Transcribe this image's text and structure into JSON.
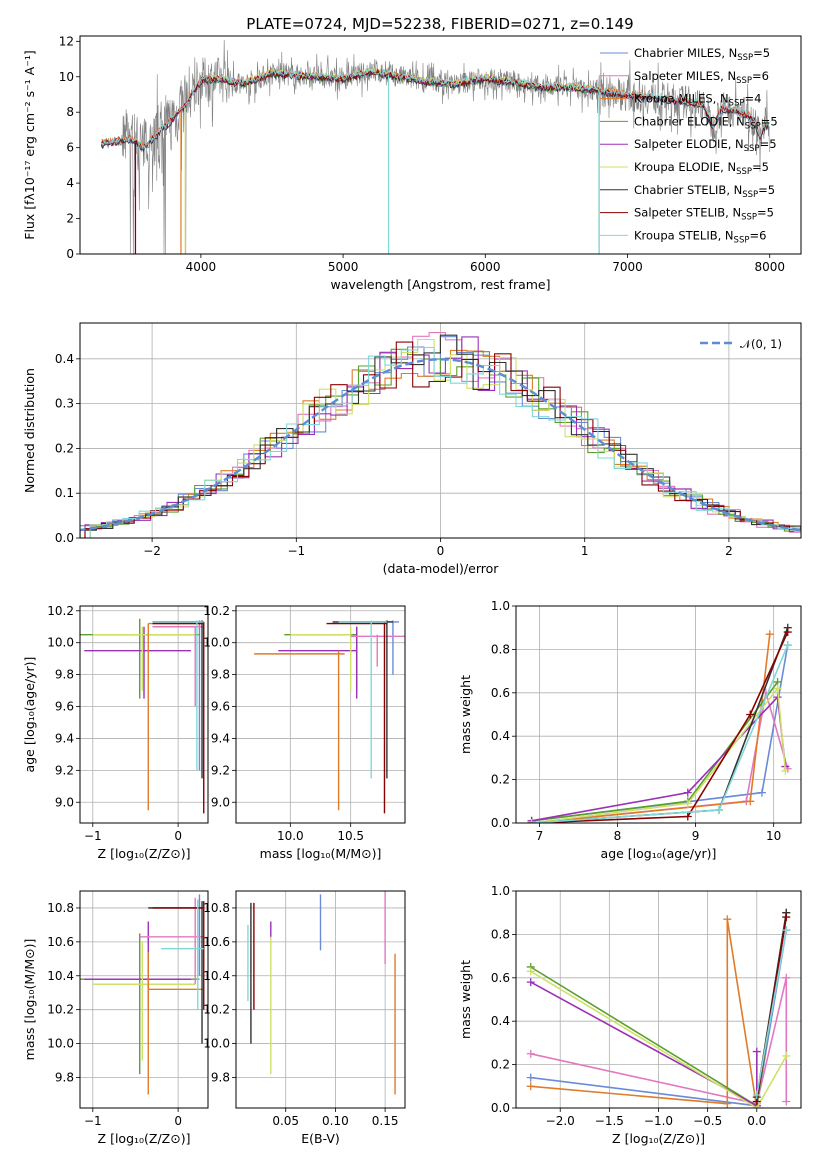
{
  "figure": {
    "title": "PLATE=0724, MJD=52238, FIBERID=0271, z=0.149"
  },
  "colors": {
    "Chabrier MILES": "#6a8bd8",
    "Salpeter MILES": "#e377c2",
    "Kroupa MILES": "#e07b2a",
    "Chabrier ELODIE": "#5aa02c",
    "Salpeter ELODIE": "#9b30b8",
    "Kroupa ELODIE": "#cfe06a",
    "Chabrier STELIB": "#333333",
    "Salpeter STELIB": "#8b0000",
    "Kroupa STELIB": "#80d8d8",
    "data": "#808080",
    "gaussian": "#5b8dd6"
  },
  "chart_data": [
    {
      "id": "spectrum",
      "type": "line",
      "xlabel": "wavelength [Angstrom, rest frame]",
      "ylabel": "Flux [fλ10⁻¹⁷ erg cm⁻² s⁻¹ A⁻¹]",
      "xlim": [
        3150,
        8220
      ],
      "ylim": [
        0,
        12.3
      ],
      "xticks": [
        "4000",
        "5000",
        "6000",
        "7000",
        "8000"
      ],
      "yticks": [
        "0",
        "2",
        "4",
        "6",
        "8",
        "10",
        "12"
      ],
      "legend_placement": "right",
      "legend": [
        {
          "label": "Chabrier MILES, N",
          "sub": "SSP",
          "tail": "=5"
        },
        {
          "label": "Salpeter MILES, N",
          "sub": "SSP",
          "tail": "=6"
        },
        {
          "label": "Kroupa MILES, N",
          "sub": "SSP",
          "tail": "=4"
        },
        {
          "label": "Chabrier ELODIE, N",
          "sub": "SSP",
          "tail": "=5"
        },
        {
          "label": "Salpeter ELODIE, N",
          "sub": "SSP",
          "tail": "=5"
        },
        {
          "label": "Kroupa ELODIE, N",
          "sub": "SSP",
          "tail": "=5"
        },
        {
          "label": "Chabrier STELIB, N",
          "sub": "SSP",
          "tail": "=5"
        },
        {
          "label": "Salpeter STELIB, N",
          "sub": "SSP",
          "tail": "=5"
        },
        {
          "label": "Kroupa STELIB, N",
          "sub": "SSP",
          "tail": "=6"
        }
      ],
      "continuum": {
        "x": [
          3300,
          3500,
          3600,
          3800,
          3900,
          4000,
          4100,
          4300,
          4500,
          4800,
          5000,
          5200,
          5400,
          5600,
          5800,
          6000,
          6200,
          6400,
          6600,
          6800,
          7000,
          7200,
          7400,
          7600,
          7800,
          8000
        ],
        "y": [
          6.2,
          6.5,
          6.0,
          7.6,
          8.5,
          9.8,
          9.9,
          9.6,
          10.2,
          10.0,
          9.9,
          10.3,
          10.0,
          9.7,
          9.6,
          9.9,
          9.7,
          9.4,
          9.4,
          9.2,
          9.0,
          8.8,
          8.6,
          8.3,
          8.0,
          7.2
        ]
      }
    },
    {
      "id": "residual-histogram",
      "type": "bar",
      "xlabel": "(data-model)/error",
      "ylabel": "Normed distribution",
      "xlim": [
        -2.5,
        2.5
      ],
      "ylim": [
        0,
        0.48
      ],
      "xticks": [
        "−2",
        "−1",
        "0",
        "1",
        "2"
      ],
      "yticks": [
        "0.0",
        "0.1",
        "0.2",
        "0.3",
        "0.4"
      ],
      "legend": "𝒩(0, 1)",
      "legend_placement": "top-right",
      "gaussian": {
        "mu": 0,
        "sigma": 1
      }
    },
    {
      "id": "age-vs-z",
      "type": "scatter",
      "xlabel": "Z [log₁₀(Z/Z⊙)]",
      "ylabel": "age  [log₁₀(age/yr)]",
      "xlim": [
        -1.15,
        0.35
      ],
      "ylim": [
        8.87,
        10.23
      ],
      "xticks": [
        "−1",
        "0"
      ],
      "yticks": [
        "9.0",
        "9.2",
        "9.4",
        "9.6",
        "9.8",
        "10.0",
        "10.2"
      ]
    },
    {
      "id": "age-vs-mass",
      "type": "scatter",
      "xlabel": "mass [log₁₀(M/M⊙)]",
      "xlim": [
        9.55,
        10.95
      ],
      "ylim": [
        8.87,
        10.23
      ],
      "xticks": [
        "10.0",
        "10.5"
      ],
      "yticks": [
        "9.0",
        "9.2",
        "9.4",
        "9.6",
        "9.8",
        "10.0",
        "10.2"
      ]
    },
    {
      "id": "weight-vs-age",
      "type": "line",
      "xlabel": "age  [log₁₀(age/yr)]",
      "ylabel": "mass weight",
      "xlim": [
        6.7,
        10.35
      ],
      "ylim": [
        0,
        1.0
      ],
      "xticks": [
        "7",
        "8",
        "9",
        "10"
      ],
      "yticks": [
        "0.0",
        "0.2",
        "0.4",
        "0.6",
        "0.8",
        "1.0"
      ],
      "series": [
        {
          "model": "Chabrier MILES",
          "x": [
            6.9,
            9.85,
            10.18
          ],
          "y": [
            0.01,
            0.14,
            0.82
          ]
        },
        {
          "model": "Salpeter MILES",
          "x": [
            6.9,
            9.65,
            9.9,
            10.18
          ],
          "y": [
            0.0,
            0.1,
            0.6,
            0.25
          ]
        },
        {
          "model": "Kroupa MILES",
          "x": [
            6.9,
            9.7,
            9.95
          ],
          "y": [
            0.0,
            0.1,
            0.87
          ]
        },
        {
          "model": "Chabrier ELODIE",
          "x": [
            6.9,
            8.9,
            10.05
          ],
          "y": [
            0.01,
            0.1,
            0.65
          ]
        },
        {
          "model": "Salpeter ELODIE",
          "x": [
            6.9,
            8.9,
            10.05,
            10.15
          ],
          "y": [
            0.01,
            0.14,
            0.58,
            0.26
          ]
        },
        {
          "model": "Kroupa ELODIE",
          "x": [
            6.9,
            8.9,
            10.05,
            10.15
          ],
          "y": [
            0.0,
            0.09,
            0.62,
            0.24
          ]
        },
        {
          "model": "Chabrier STELIB",
          "x": [
            6.9,
            9.3,
            10.18
          ],
          "y": [
            0.0,
            0.06,
            0.9
          ]
        },
        {
          "model": "Salpeter STELIB",
          "x": [
            6.9,
            8.9,
            9.7,
            10.18
          ],
          "y": [
            0.0,
            0.03,
            0.5,
            0.88
          ]
        },
        {
          "model": "Kroupa STELIB",
          "x": [
            6.9,
            9.3,
            10.18
          ],
          "y": [
            0.0,
            0.06,
            0.82
          ]
        }
      ]
    },
    {
      "id": "mass-vs-z",
      "type": "scatter",
      "xlabel": "Z [log₁₀(Z/Z⊙)]",
      "ylabel": "mass [log₁₀(M/M⊙)]",
      "xlim": [
        -1.15,
        0.35
      ],
      "ylim": [
        9.62,
        10.9
      ],
      "xticks": [
        "−1",
        "0"
      ],
      "yticks": [
        "9.8",
        "10.0",
        "10.2",
        "10.4",
        "10.6",
        "10.8"
      ]
    },
    {
      "id": "mass-vs-ebv",
      "type": "scatter",
      "xlabel": "E(B-V)",
      "xlim": [
        0.0,
        0.17
      ],
      "ylim": [
        9.62,
        10.9
      ],
      "xticks": [
        "0.05",
        "0.10",
        "0.15"
      ],
      "yticks": [
        "9.8",
        "10.0",
        "10.2",
        "10.4",
        "10.6",
        "10.8"
      ]
    },
    {
      "id": "weight-vs-z",
      "type": "line",
      "xlabel": "Z [log₁₀(Z/Z⊙)]",
      "ylabel": "mass weight",
      "xlim": [
        -2.45,
        0.45
      ],
      "ylim": [
        0,
        1.0
      ],
      "xticks": [
        "−2.0",
        "−1.5",
        "−1.0",
        "−0.5",
        "0.0"
      ],
      "yticks": [
        "0.0",
        "0.2",
        "0.4",
        "0.6",
        "0.8",
        "1.0"
      ],
      "series": [
        {
          "model": "Chabrier MILES",
          "x": [
            -2.3,
            0.0,
            0.3
          ],
          "y": [
            0.14,
            0.01,
            0.82
          ]
        },
        {
          "model": "Salpeter MILES",
          "x": [
            -2.3,
            0.0,
            0.3,
            0.3
          ],
          "y": [
            0.25,
            0.02,
            0.6,
            0.03
          ]
        },
        {
          "model": "Kroupa MILES",
          "x": [
            -2.3,
            -0.3,
            -0.3,
            0.0
          ],
          "y": [
            0.1,
            0.02,
            0.87,
            0.0
          ]
        },
        {
          "model": "Chabrier ELODIE",
          "x": [
            -2.3,
            0.0,
            0.3
          ],
          "y": [
            0.65,
            0.01,
            0.9
          ]
        },
        {
          "model": "Salpeter ELODIE",
          "x": [
            -2.3,
            0.0,
            0.0
          ],
          "y": [
            0.58,
            0.01,
            0.26
          ]
        },
        {
          "model": "Kroupa ELODIE",
          "x": [
            -2.3,
            0.0,
            0.3
          ],
          "y": [
            0.63,
            0.0,
            0.24
          ]
        },
        {
          "model": "Chabrier STELIB",
          "x": [
            0.0,
            0.3
          ],
          "y": [
            0.05,
            0.9
          ]
        },
        {
          "model": "Salpeter STELIB",
          "x": [
            0.0,
            0.3
          ],
          "y": [
            0.03,
            0.88
          ]
        },
        {
          "model": "Kroupa STELIB",
          "x": [
            0.0,
            0.3
          ],
          "y": [
            0.06,
            0.82
          ]
        }
      ]
    }
  ]
}
